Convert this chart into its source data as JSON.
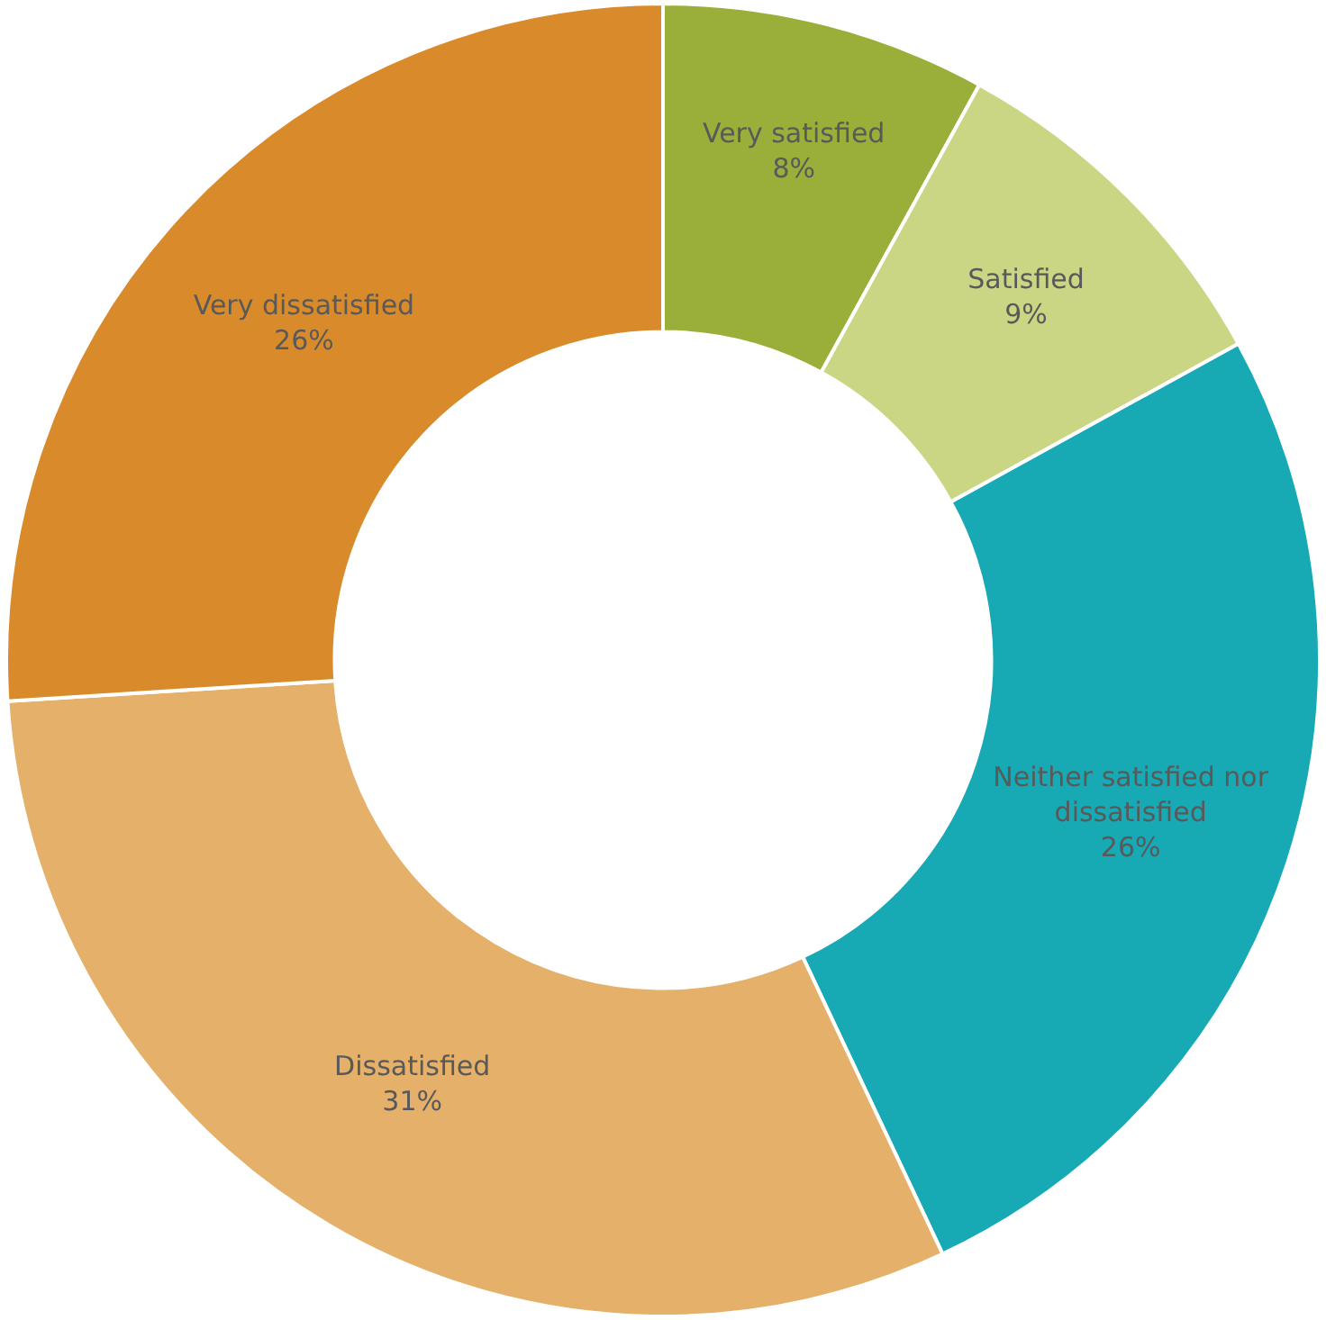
{
  "chart_data": {
    "type": "donut",
    "categories": [
      "Very satisfied",
      "Satisfied",
      "Neither satisfied nor dissatisfied",
      "Dissatisfied",
      "Very dissatisfied"
    ],
    "values": [
      8,
      9,
      26,
      31,
      26
    ],
    "value_labels": [
      "8%",
      "9%",
      "26%",
      "31%",
      "26%"
    ],
    "colors": [
      "#9aaf3a",
      "#cbd685",
      "#17aab5",
      "#e4b06a",
      "#d98b2b"
    ],
    "legend": false
  }
}
